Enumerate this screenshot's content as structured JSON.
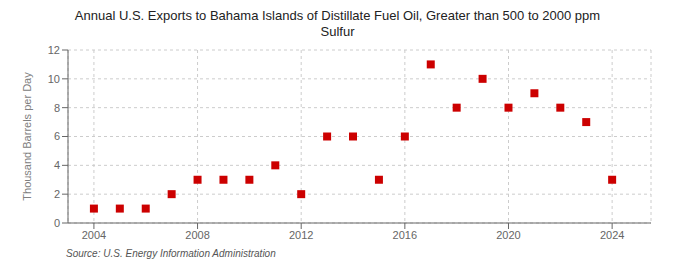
{
  "chart_data": {
    "type": "scatter",
    "title": "Annual U.S. Exports to Bahama Islands of Distillate Fuel Oil, Greater than 500 to 2000 ppm\nSulfur",
    "ylabel": "Thousand Barrels per Day",
    "annotations": [
      "Source: U.S. Energy Information Administration"
    ],
    "x": [
      2004,
      2005,
      2006,
      2007,
      2008,
      2009,
      2010,
      2011,
      2012,
      2013,
      2014,
      2015,
      2016,
      2017,
      2018,
      2019,
      2020,
      2021,
      2022,
      2023,
      2024
    ],
    "values": [
      1,
      1,
      1,
      2,
      3,
      3,
      3,
      4,
      2,
      6,
      6,
      3,
      6,
      11,
      8,
      10,
      8,
      9,
      8,
      7,
      3
    ],
    "color": "#cc0000",
    "marker": "square",
    "xlim": [
      2003,
      2025.5
    ],
    "ylim": [
      0,
      12
    ],
    "xticks": [
      2004,
      2008,
      2012,
      2016,
      2020,
      2024
    ],
    "yticks": [
      0,
      2,
      4,
      6,
      8,
      10,
      12
    ],
    "grid": true
  }
}
